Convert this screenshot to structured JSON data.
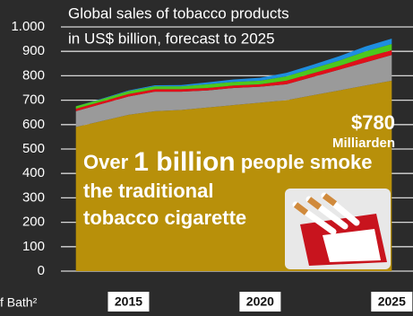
{
  "chart_data": {
    "type": "stacked_area",
    "title": [
      "Global sales of tobacco products",
      "in US$ billion, forecast to 2025"
    ],
    "x": [
      2013,
      2014,
      2015,
      2016,
      2017,
      2018,
      2019,
      2020,
      2021,
      2022,
      2023,
      2024,
      2025
    ],
    "xlim": [
      2012.5,
      2025.5
    ],
    "xticks": [
      2015,
      2020,
      2025
    ],
    "ylim": [
      0,
      1000
    ],
    "yticks": [
      0,
      100,
      200,
      300,
      400,
      500,
      600,
      700,
      800,
      900,
      {
        "value": 1000,
        "label": "1.000"
      }
    ],
    "grid": true,
    "series": [
      {
        "color": "#b8900a",
        "values": [
          590,
          615,
          640,
          655,
          660,
          670,
          680,
          690,
          700,
          720,
          740,
          760,
          780
        ]
      },
      {
        "color": "#9a9a9a",
        "values": [
          65,
          70,
          75,
          80,
          75,
          70,
          70,
          65,
          65,
          75,
          85,
          95,
          105
        ]
      },
      {
        "color": "#e0101a",
        "values": [
          10,
          10,
          10,
          10,
          10,
          10,
          10,
          10,
          15,
          15,
          15,
          20,
          20
        ]
      },
      {
        "color": "#4cc81e",
        "values": [
          10,
          10,
          12,
          12,
          12,
          15,
          15,
          15,
          18,
          20,
          22,
          25,
          25
        ]
      },
      {
        "color": "#1e8ee0",
        "values": [
          0,
          2,
          3,
          4,
          5,
          8,
          10,
          12,
          14,
          15,
          18,
          20,
          22
        ]
      }
    ],
    "annotations": [
      "$780",
      "Milliarden",
      "Over ",
      "1 billion",
      " people smoke",
      "the traditional",
      "tobacco cigarette"
    ],
    "source": "f Bath²"
  }
}
